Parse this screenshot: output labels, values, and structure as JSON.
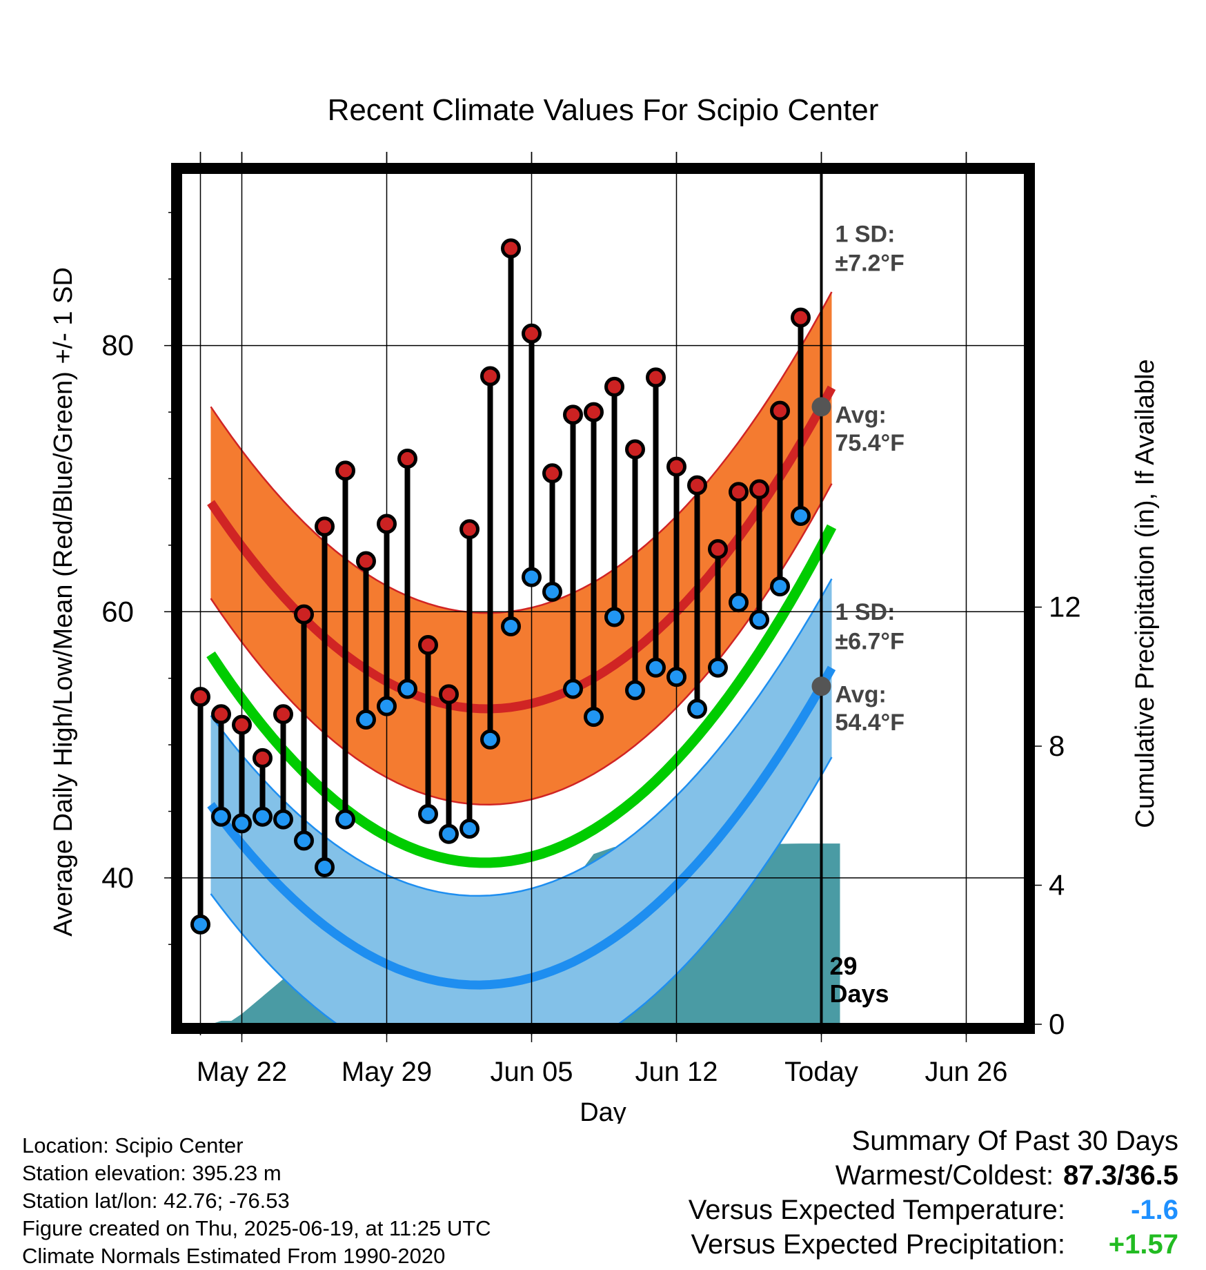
{
  "chart_data": {
    "type": "line",
    "title": "Recent Climate Values For Scipio Center",
    "xlabel": "Day",
    "ylabel_left": "Average Daily High/Low/Mean (Red/Blue/Green) +/- 1 SD",
    "ylabel_right": "Cumulative Precipitation (in), If Available",
    "x_ticks": [
      "May 22",
      "May 29",
      "Jun 05",
      "Jun 12",
      "Today",
      "Jun 26"
    ],
    "y_left_ticks": [
      "40",
      "60",
      "80"
    ],
    "y_right_ticks": [
      "0",
      "4",
      "8",
      "12"
    ],
    "ylim_left": [
      29,
      93
    ],
    "ylim_right": [
      0,
      24.5
    ],
    "grid": true,
    "days": [
      "May 20",
      "May 21",
      "May 22",
      "May 23",
      "May 24",
      "May 25",
      "May 26",
      "May 27",
      "May 28",
      "May 29",
      "May 30",
      "May 31",
      "Jun 01",
      "Jun 02",
      "Jun 03",
      "Jun 04",
      "Jun 05",
      "Jun 06",
      "Jun 07",
      "Jun 08",
      "Jun 09",
      "Jun 10",
      "Jun 11",
      "Jun 12",
      "Jun 13",
      "Jun 14",
      "Jun 15",
      "Jun 16",
      "Jun 17",
      "Jun 18"
    ],
    "highs": [
      53.6,
      52.3,
      51.5,
      49.0,
      52.3,
      59.8,
      66.4,
      70.6,
      63.8,
      66.6,
      71.5,
      57.5,
      53.8,
      66.2,
      77.7,
      87.3,
      80.9,
      70.4,
      74.8,
      75.0,
      76.9,
      72.2,
      77.6,
      70.9,
      69.5,
      64.7,
      69.0,
      69.2,
      75.1,
      82.1
    ],
    "lows": [
      36.5,
      44.6,
      44.1,
      44.6,
      44.4,
      42.8,
      40.8,
      44.4,
      51.9,
      52.9,
      54.2,
      44.8,
      43.3,
      43.7,
      50.4,
      58.9,
      62.6,
      61.5,
      54.2,
      52.1,
      59.6,
      54.1,
      55.8,
      55.1,
      52.7,
      55.8,
      60.7,
      59.4,
      61.9,
      67.2
    ],
    "normal_high": {
      "name": "Avg: 75.4°F",
      "start": 68.2,
      "today": 75.4,
      "end": 78.0,
      "sd": 7.2,
      "sd_label_1": "1 SD:",
      "sd_label_2": "±7.2°F",
      "avg_label_1": "Avg:",
      "avg_label_2": "75.4°F"
    },
    "normal_low": {
      "name": "Avg: 54.4°F",
      "start": 45.5,
      "today": 54.4,
      "end": 56.9,
      "sd": 6.7,
      "sd_label_1": "1 SD:",
      "sd_label_2": "±6.7°F",
      "avg_label_1": "Avg:",
      "avg_label_2": "54.4°F"
    },
    "normal_mean": {
      "start": 56.8,
      "today": 64.9,
      "end": 67.6
    },
    "precip_cumulative": {
      "days": [
        20.5,
        21,
        21.5,
        22,
        23,
        24,
        25,
        26,
        27,
        28,
        29,
        30,
        31,
        32,
        33,
        34,
        35,
        36,
        37,
        38,
        39,
        40,
        41,
        42,
        43,
        44,
        45,
        46,
        47,
        48,
        49,
        50.9
      ],
      "values": [
        0,
        0.1,
        0.1,
        0.3,
        0.8,
        1.3,
        1.4,
        1.5,
        1.5,
        1.9,
        2.0,
        2.1,
        2.3,
        2.4,
        2.4,
        2.4,
        3.6,
        3.9,
        4.0,
        4.1,
        4.9,
        5.1,
        5.1,
        5.1,
        5.14,
        5.17,
        5.17,
        5.17,
        5.18,
        5.19,
        5.2,
        5.2
      ]
    },
    "today_marker": {
      "label_1": "29",
      "label_2": "Days"
    },
    "colors": {
      "high_band": "#f47b30",
      "high_line": "#d02424",
      "low_band": "#83c1e8",
      "low_line": "#1e8ef0",
      "mean_line": "#00cc00",
      "precip": "#4a9ba4",
      "high_dot": "#cc2222",
      "low_dot": "#2196f3"
    }
  },
  "footer": {
    "location": "Location: Scipio Center",
    "elevation": "Station elevation: 395.23 m",
    "latlon": "Station lat/lon: 42.76; -76.53",
    "created": "Figure created on Thu, 2025-06-19, at 11:25 UTC",
    "normals": "Climate Normals Estimated From 1990-2020"
  },
  "summary": {
    "heading": "Summary Of Past 30 Days",
    "warmest_label": "Warmest/Coldest:",
    "warmest_value": "87.3/36.5",
    "temp_label": "Versus Expected Temperature:",
    "temp_value": "-1.6",
    "temp_color": "#1e90ff",
    "precip_label": "Versus Expected Precipitation:",
    "precip_value": "+1.57",
    "precip_color": "#22bb22"
  }
}
